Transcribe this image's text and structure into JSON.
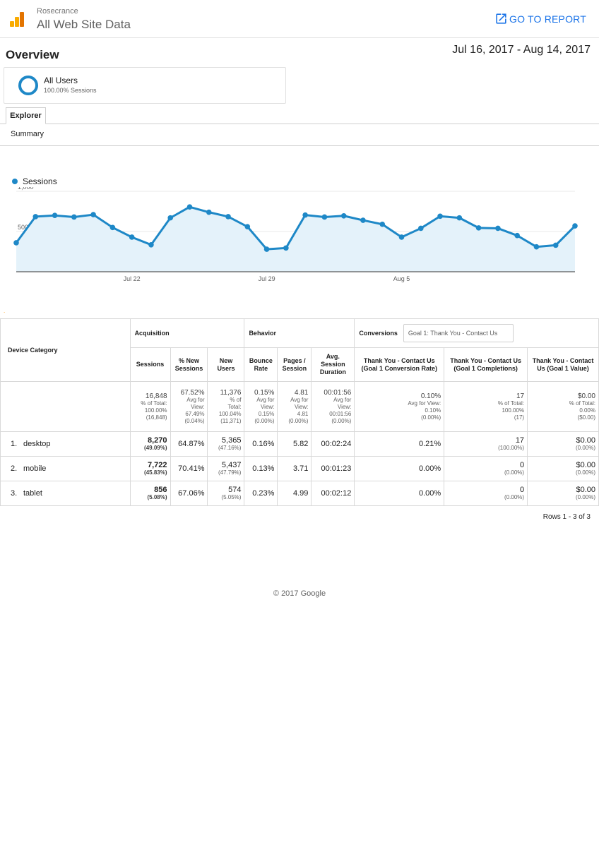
{
  "header": {
    "account": "Rosecrance",
    "property": "All Web Site Data",
    "go_to_report": "GO TO REPORT"
  },
  "overview": {
    "title": "Overview",
    "date_range": "Jul 16, 2017 - Aug 14, 2017"
  },
  "segment": {
    "name": "All Users",
    "sub": "100.00% Sessions"
  },
  "tabs": {
    "explorer": "Explorer",
    "summary": "Summary"
  },
  "chart_data": {
    "type": "line",
    "series": [
      {
        "name": "Sessions",
        "values": [
          360,
          685,
          700,
          680,
          710,
          550,
          430,
          335,
          670,
          805,
          740,
          685,
          560,
          280,
          295,
          705,
          680,
          695,
          640,
          590,
          430,
          540,
          690,
          670,
          545,
          540,
          450,
          310,
          330,
          570
        ]
      }
    ],
    "x_tick_labels": [
      "Jul 22",
      "Jul 29",
      "Aug 5"
    ],
    "x_tick_indices": [
      6,
      13,
      20
    ],
    "y_ticks": [
      500,
      1000
    ],
    "y_tick_labels": [
      "500",
      "1,000"
    ],
    "ylim": [
      0,
      1000
    ],
    "color": "#1e88c7",
    "fill": "#e4f2fa",
    "legend": "top-left",
    "grid": true
  },
  "table": {
    "dimension_header": "Device Category",
    "groups": {
      "acquisition": "Acquisition",
      "behavior": "Behavior",
      "conversions": "Conversions",
      "goal_select": "Goal 1: Thank You - Contact Us"
    },
    "columns": [
      "Sessions",
      "% New Sessions",
      "New Users",
      "Bounce Rate",
      "Pages / Session",
      "Avg. Session Duration",
      "Thank You - Contact Us (Goal 1 Conversion Rate)",
      "Thank You - Contact Us (Goal 1 Completions)",
      "Thank You - Contact Us (Goal 1 Value)"
    ],
    "totals": [
      {
        "main": "16,848",
        "l1": "% of Total:",
        "l2": "100.00%",
        "l3": "(16,848)"
      },
      {
        "main": "67.52%",
        "l1": "Avg for",
        "l2": "View:",
        "l3": "67.49%",
        "l4": "(0.04%)"
      },
      {
        "main": "11,376",
        "l1": "% of",
        "l2": "Total:",
        "l3": "100.04%",
        "l4": "(11,371)"
      },
      {
        "main": "0.15%",
        "l1": "Avg for",
        "l2": "View:",
        "l3": "0.15%",
        "l4": "(0.00%)"
      },
      {
        "main": "4.81",
        "l1": "Avg for",
        "l2": "View:",
        "l3": "4.81",
        "l4": "(0.00%)"
      },
      {
        "main": "00:01:56",
        "l1": "Avg for",
        "l2": "View:",
        "l3": "00:01:56",
        "l4": "(0.00%)"
      },
      {
        "main": "0.10%",
        "l1": "Avg for View:",
        "l2": "0.10%",
        "l3": "(0.00%)"
      },
      {
        "main": "17",
        "l1": "% of Total:",
        "l2": "100.00%",
        "l3": "(17)"
      },
      {
        "main": "$0.00",
        "l1": "% of Total:",
        "l2": "0.00%",
        "l3": "($0.00)"
      }
    ],
    "rows": [
      {
        "idx": "1.",
        "device": "desktop",
        "sessions": "8,270",
        "sessions_pct": "(49.09%)",
        "new_sess": "64.87%",
        "new_users": "5,365",
        "new_users_pct": "(47.16%)",
        "bounce": "0.16%",
        "pages": "5.82",
        "duration": "00:02:24",
        "conv_rate": "0.21%",
        "completions": "17",
        "completions_pct": "(100.00%)",
        "value": "$0.00",
        "value_pct": "(0.00%)"
      },
      {
        "idx": "2.",
        "device": "mobile",
        "sessions": "7,722",
        "sessions_pct": "(45.83%)",
        "new_sess": "70.41%",
        "new_users": "5,437",
        "new_users_pct": "(47.79%)",
        "bounce": "0.13%",
        "pages": "3.71",
        "duration": "00:01:23",
        "conv_rate": "0.00%",
        "completions": "0",
        "completions_pct": "(0.00%)",
        "value": "$0.00",
        "value_pct": "(0.00%)"
      },
      {
        "idx": "3.",
        "device": "tablet",
        "sessions": "856",
        "sessions_pct": "(5.08%)",
        "new_sess": "67.06%",
        "new_users": "574",
        "new_users_pct": "(5.05%)",
        "bounce": "0.23%",
        "pages": "4.99",
        "duration": "00:02:12",
        "conv_rate": "0.00%",
        "completions": "0",
        "completions_pct": "(0.00%)",
        "value": "$0.00",
        "value_pct": "(0.00%)"
      }
    ],
    "rows_info": "Rows 1 - 3 of 3"
  },
  "footer": "© 2017 Google"
}
